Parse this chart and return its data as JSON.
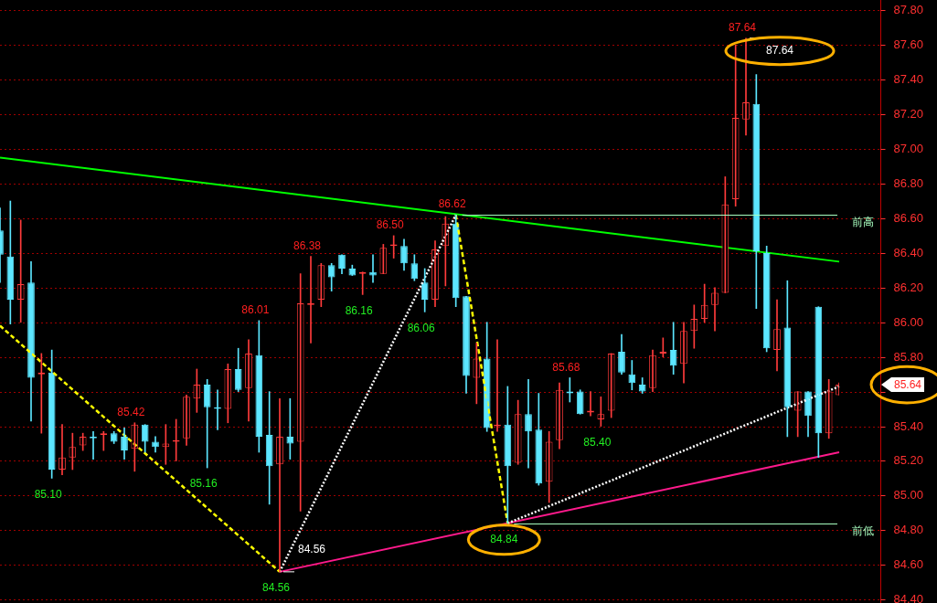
{
  "chart_data": {
    "type": "candlestick",
    "categories": [
      null,
      null,
      null,
      null,
      null,
      null,
      null,
      null,
      null,
      null,
      null,
      null,
      null,
      null,
      null,
      null,
      null,
      null,
      null,
      null,
      null,
      null,
      null,
      null,
      null,
      null,
      null,
      null,
      null,
      null,
      null,
      null,
      null,
      null,
      null,
      null,
      null,
      null,
      null,
      null,
      null,
      null,
      null,
      null,
      null,
      null,
      null,
      null,
      null,
      null,
      null,
      null,
      null,
      null,
      null,
      null,
      null,
      null,
      null,
      null,
      null,
      null,
      null,
      null,
      null,
      null,
      null,
      null,
      null,
      null,
      null,
      null,
      null,
      null,
      null,
      null,
      null,
      null,
      null,
      null,
      null,
      null
    ],
    "series": [
      {
        "type": "line",
        "values": [
          86.95,
          null,
          null,
          null,
          null,
          null,
          null,
          null,
          null,
          null,
          null,
          null,
          null,
          null,
          null,
          null,
          null,
          null,
          null,
          null,
          null,
          null,
          null,
          null,
          null,
          null,
          null,
          null,
          null,
          null,
          null,
          null,
          null,
          null,
          null,
          null,
          null,
          null,
          null,
          null,
          null,
          null,
          null,
          null,
          null,
          null,
          null,
          null,
          null,
          null,
          null,
          null,
          null,
          null,
          null,
          null,
          null,
          null,
          null,
          null,
          null,
          null,
          null,
          null,
          null,
          null,
          null,
          null,
          null,
          null,
          null,
          null,
          null,
          null,
          null,
          null,
          null,
          null,
          null,
          null,
          null,
          86.35
        ],
        "color": "#00ff00",
        "line_style": "solid"
      },
      {
        "type": "line",
        "values": [
          null,
          null,
          null,
          null,
          null,
          null,
          null,
          null,
          null,
          null,
          null,
          null,
          null,
          null,
          null,
          null,
          null,
          null,
          null,
          null,
          null,
          null,
          null,
          null,
          null,
          null,
          null,
          84.56,
          null,
          null,
          null,
          null,
          null,
          null,
          null,
          null,
          null,
          null,
          null,
          null,
          null,
          null,
          null,
          null,
          null,
          null,
          null,
          null,
          null,
          null,
          null,
          null,
          null,
          null,
          null,
          null,
          null,
          null,
          null,
          null,
          null,
          null,
          null,
          null,
          null,
          null,
          null,
          null,
          null,
          null,
          null,
          null,
          null,
          null,
          null,
          null,
          null,
          null,
          null,
          null,
          null,
          85.25
        ],
        "color": "#ff1a8c",
        "line_style": "solid"
      },
      {
        "type": "line",
        "values": [
          85.98,
          null,
          null,
          null,
          null,
          null,
          null,
          null,
          null,
          null,
          null,
          null,
          null,
          null,
          null,
          null,
          null,
          null,
          null,
          null,
          null,
          null,
          null,
          null,
          null,
          null,
          null,
          84.56,
          null,
          null,
          null,
          null,
          null,
          null,
          null,
          null,
          null,
          null,
          null,
          null,
          null,
          null,
          null,
          null,
          null,
          null,
          null,
          null,
          null,
          null,
          null,
          null,
          null,
          null,
          null,
          null,
          null,
          null,
          null,
          null,
          null,
          null,
          null,
          null,
          null,
          null,
          null,
          null,
          null,
          null,
          null,
          null,
          null,
          null,
          null,
          null,
          null,
          null,
          null,
          null,
          null,
          null
        ],
        "color": "#ffff00",
        "line_style": "dashed"
      },
      {
        "type": "line",
        "values": [
          null,
          null,
          null,
          null,
          null,
          null,
          null,
          null,
          null,
          null,
          null,
          null,
          null,
          null,
          null,
          null,
          null,
          null,
          null,
          null,
          null,
          null,
          null,
          null,
          null,
          null,
          null,
          84.56,
          null,
          null,
          null,
          null,
          null,
          null,
          null,
          null,
          null,
          null,
          null,
          null,
          null,
          null,
          null,
          null,
          86.62,
          null,
          null,
          null,
          null,
          null,
          null,
          null,
          null,
          null,
          null,
          null,
          null,
          null,
          null,
          null,
          null,
          null,
          null,
          null,
          null,
          null,
          null,
          null,
          null,
          null,
          null,
          null,
          null,
          null,
          null,
          null,
          null,
          null,
          null,
          null,
          null,
          null
        ],
        "color": "#ffffff",
        "line_style": "dotted"
      },
      {
        "type": "line",
        "values": [
          null,
          null,
          null,
          null,
          null,
          null,
          null,
          null,
          null,
          null,
          null,
          null,
          null,
          null,
          null,
          null,
          null,
          null,
          null,
          null,
          null,
          null,
          null,
          null,
          null,
          null,
          null,
          null,
          null,
          null,
          null,
          null,
          null,
          null,
          null,
          null,
          null,
          null,
          null,
          null,
          null,
          null,
          null,
          null,
          86.62,
          null,
          null,
          null,
          null,
          84.84,
          null,
          null,
          null,
          null,
          null,
          null,
          null,
          null,
          null,
          null,
          null,
          null,
          null,
          null,
          null,
          null,
          null,
          null,
          null,
          null,
          null,
          null,
          null,
          null,
          null,
          null,
          null,
          null,
          null,
          null,
          null,
          null
        ],
        "color": "#ffff00",
        "line_style": "dashed"
      },
      {
        "type": "line",
        "values": [
          null,
          null,
          null,
          null,
          null,
          null,
          null,
          null,
          null,
          null,
          null,
          null,
          null,
          null,
          null,
          null,
          null,
          null,
          null,
          null,
          null,
          null,
          null,
          null,
          null,
          null,
          null,
          null,
          null,
          null,
          null,
          null,
          null,
          null,
          null,
          null,
          null,
          null,
          null,
          null,
          null,
          null,
          null,
          null,
          null,
          null,
          null,
          null,
          null,
          84.84,
          null,
          null,
          null,
          null,
          null,
          null,
          null,
          null,
          null,
          null,
          null,
          null,
          null,
          null,
          null,
          null,
          null,
          null,
          null,
          null,
          null,
          null,
          null,
          null,
          null,
          null,
          null,
          null,
          null,
          null,
          null,
          85.63
        ],
        "color": "#ffffff",
        "line_style": "dotted"
      },
      {
        "ohlc": [
          [
            86.53,
            86.66,
            86.23,
            86.39
          ],
          [
            86.38,
            86.7,
            85.99,
            86.13
          ],
          [
            86.13,
            86.59,
            86.0,
            86.22
          ],
          [
            86.23,
            86.35,
            85.43,
            85.68
          ],
          [
            85.7,
            85.82,
            85.36,
            85.71
          ],
          [
            85.71,
            85.84,
            85.1,
            85.15
          ],
          [
            85.15,
            85.41,
            85.12,
            85.22
          ],
          [
            85.22,
            85.36,
            85.15,
            85.28
          ],
          [
            85.29,
            85.36,
            85.26,
            85.34
          ],
          [
            85.34,
            85.37,
            85.21,
            85.33
          ],
          [
            85.35,
            85.37,
            85.26,
            85.36
          ],
          [
            85.36,
            85.37,
            85.3,
            85.31
          ],
          [
            85.34,
            85.39,
            85.21,
            85.26
          ],
          [
            85.27,
            85.42,
            85.14,
            85.41
          ],
          [
            85.41,
            85.41,
            85.25,
            85.31
          ],
          [
            85.31,
            85.34,
            85.25,
            85.28
          ],
          [
            85.28,
            85.41,
            85.18,
            85.3
          ],
          [
            85.31,
            85.44,
            85.2,
            85.32
          ],
          [
            85.33,
            85.58,
            85.29,
            85.57
          ],
          [
            85.56,
            85.73,
            85.48,
            85.64
          ],
          [
            85.64,
            85.67,
            85.16,
            85.51
          ],
          [
            85.51,
            85.61,
            85.38,
            85.5
          ],
          [
            85.5,
            85.76,
            85.42,
            85.73
          ],
          [
            85.73,
            85.85,
            85.6,
            85.61
          ],
          [
            85.62,
            85.9,
            85.43,
            85.82
          ],
          [
            85.81,
            86.01,
            85.25,
            85.34
          ],
          [
            85.35,
            85.6,
            84.95,
            85.17
          ],
          [
            85.18,
            85.56,
            84.56,
            85.34
          ],
          [
            85.34,
            85.56,
            85.21,
            85.3
          ],
          [
            85.31,
            86.28,
            84.91,
            86.11
          ],
          [
            86.1,
            86.38,
            85.88,
            86.11
          ],
          [
            86.13,
            86.34,
            86.09,
            86.33
          ],
          [
            86.33,
            86.34,
            86.18,
            86.26
          ],
          [
            86.39,
            86.39,
            86.28,
            86.31
          ],
          [
            86.31,
            86.33,
            86.27,
            86.27
          ],
          [
            86.28,
            86.29,
            86.16,
            86.29
          ],
          [
            86.29,
            86.39,
            86.23,
            86.27
          ],
          [
            86.28,
            86.45,
            86.28,
            86.43
          ],
          [
            86.44,
            86.5,
            86.37,
            86.45
          ],
          [
            86.44,
            86.48,
            86.3,
            86.34
          ],
          [
            86.34,
            86.39,
            86.24,
            86.25
          ],
          [
            86.23,
            86.31,
            86.06,
            86.13
          ],
          [
            86.13,
            86.47,
            86.09,
            86.42
          ],
          [
            86.44,
            86.61,
            86.21,
            86.57
          ],
          [
            86.57,
            86.62,
            86.09,
            86.14
          ],
          [
            86.15,
            86.15,
            85.59,
            85.69
          ],
          [
            85.68,
            85.88,
            85.53,
            85.79
          ],
          [
            85.79,
            86.0,
            85.37,
            85.39
          ],
          [
            85.4,
            85.9,
            85.37,
            85.41
          ],
          [
            85.41,
            85.63,
            84.84,
            85.17
          ],
          [
            85.19,
            85.55,
            85.18,
            85.47
          ],
          [
            85.47,
            85.67,
            85.16,
            85.37
          ],
          [
            85.38,
            85.59,
            85.06,
            85.07
          ],
          [
            85.08,
            85.37,
            84.96,
            85.31
          ],
          [
            85.32,
            85.65,
            85.27,
            85.61
          ],
          [
            85.6,
            85.68,
            85.54,
            85.59
          ],
          [
            85.6,
            85.61,
            85.47,
            85.47
          ],
          [
            85.48,
            85.6,
            85.46,
            85.49
          ],
          [
            85.44,
            85.57,
            85.4,
            85.47
          ],
          [
            85.49,
            85.82,
            85.45,
            85.82
          ],
          [
            85.83,
            85.93,
            85.7,
            85.71
          ],
          [
            85.7,
            85.78,
            85.61,
            85.65
          ],
          [
            85.64,
            85.68,
            85.59,
            85.6
          ],
          [
            85.62,
            85.84,
            85.6,
            85.81
          ],
          [
            85.82,
            85.91,
            85.8,
            85.83
          ],
          [
            85.84,
            86.0,
            85.7,
            85.75
          ],
          [
            85.76,
            86.0,
            85.65,
            85.95
          ],
          [
            85.95,
            86.1,
            85.85,
            86.02
          ],
          [
            86.02,
            86.22,
            86.0,
            86.1
          ],
          [
            86.1,
            86.2,
            85.95,
            86.17
          ],
          [
            86.17,
            86.84,
            86.17,
            86.68
          ],
          [
            86.71,
            87.6,
            86.67,
            87.18
          ],
          [
            87.17,
            87.64,
            87.08,
            87.27
          ],
          [
            87.26,
            87.43,
            86.08,
            86.41
          ],
          [
            86.4,
            86.44,
            85.83,
            85.85
          ],
          [
            85.84,
            86.13,
            85.72,
            85.96
          ],
          [
            85.97,
            86.24,
            85.34,
            85.51
          ],
          [
            85.49,
            85.6,
            85.34,
            85.6
          ],
          [
            85.6,
            85.6,
            85.34,
            85.46
          ],
          [
            86.09,
            86.09,
            85.22,
            85.36
          ],
          [
            85.36,
            85.67,
            85.33,
            85.6
          ],
          [
            85.58,
            85.65,
            85.58,
            85.64
          ]
        ],
        "colors": [
          "#5ce6ff",
          "#5ce6ff",
          "#ff3b3b",
          "#5ce6ff",
          "#ff3b3b",
          "#5ce6ff",
          "#ff3b3b",
          "#ff3b3b",
          "#ff3b3b",
          "#5ce6ff",
          "#ff3b3b",
          "#5ce6ff",
          "#5ce6ff",
          "#ff3b3b",
          "#5ce6ff",
          "#5ce6ff",
          "#ff3b3b",
          "#ff3b3b",
          "#ff3b3b",
          "#ff3b3b",
          "#5ce6ff",
          "#5ce6ff",
          "#ff3b3b",
          "#5ce6ff",
          "#ff3b3b",
          "#5ce6ff",
          "#5ce6ff",
          "#ff3b3b",
          "#5ce6ff",
          "#ff3b3b",
          "#ff3b3b",
          "#ff3b3b",
          "#5ce6ff",
          "#5ce6ff",
          "#5ce6ff",
          "#ff3b3b",
          "#5ce6ff",
          "#ff3b3b",
          "#ff3b3b",
          "#5ce6ff",
          "#5ce6ff",
          "#5ce6ff",
          "#ff3b3b",
          "#ff3b3b",
          "#5ce6ff",
          "#5ce6ff",
          "#ff3b3b",
          "#5ce6ff",
          "#ff3b3b",
          "#5ce6ff",
          "#ff3b3b",
          "#5ce6ff",
          "#5ce6ff",
          "#ff3b3b",
          "#ff3b3b",
          "#5ce6ff",
          "#5ce6ff",
          "#ff3b3b",
          "#ff3b3b",
          "#ff3b3b",
          "#5ce6ff",
          "#5ce6ff",
          "#5ce6ff",
          "#ff3b3b",
          "#ff3b3b",
          "#5ce6ff",
          "#ff3b3b",
          "#ff3b3b",
          "#ff3b3b",
          "#ff3b3b",
          "#ff3b3b",
          "#ff3b3b",
          "#ff3b3b",
          "#5ce6ff",
          "#5ce6ff",
          "#ff3b3b",
          "#5ce6ff",
          "#ff3b3b",
          "#5ce6ff",
          "#5ce6ff",
          "#ff3b3b",
          "#ff3b3b"
        ]
      }
    ],
    "ylim": [
      84.38,
      87.86
    ],
    "yticks": [
      {
        "value": 84.4,
        "label": "84.40"
      },
      {
        "value": 84.6,
        "label": "84.60"
      },
      {
        "value": 84.8,
        "label": "84.80"
      },
      {
        "value": 85.0,
        "label": "85.00"
      },
      {
        "value": 85.2,
        "label": "85.20"
      },
      {
        "value": 85.4,
        "label": "85.40"
      },
      {
        "value": 85.6,
        "label": null
      },
      {
        "value": 85.8,
        "label": "85.80"
      },
      {
        "value": 86.0,
        "label": "86.00"
      },
      {
        "value": 86.2,
        "label": "86.20"
      },
      {
        "value": 86.4,
        "label": "86.40"
      },
      {
        "value": 86.6,
        "label": "86.60"
      },
      {
        "value": 86.8,
        "label": "86.80"
      },
      {
        "value": 87.0,
        "label": "87.00"
      },
      {
        "value": 87.2,
        "label": "87.20"
      },
      {
        "value": 87.4,
        "label": "87.40"
      },
      {
        "value": 87.6,
        "label": "87.60"
      },
      {
        "value": 87.8,
        "label": "87.80"
      }
    ],
    "ref_lines": [
      {
        "axis": "y",
        "value": 86.62,
        "label": "前高",
        "color": "#a8ffc0"
      },
      {
        "axis": "y",
        "value": 84.84,
        "label": "前低",
        "color": "#a8ffc0"
      }
    ],
    "annotations": [
      "85.64",
      {
        "text": "87.64",
        "y": 87.64
      },
      "87.64",
      {
        "text": "86.62",
        "y": 86.62
      },
      {
        "text": "86.50",
        "y": 86.5
      },
      {
        "text": "86.38",
        "y": 86.38
      },
      {
        "text": "86.01",
        "y": 86.01
      },
      {
        "text": "85.42",
        "y": 85.42
      },
      {
        "text": "85.68",
        "y": 85.68
      },
      {
        "text": "85.10",
        "y": 85.1
      },
      {
        "text": "85.16",
        "y": 85.16
      },
      {
        "text": "84.56",
        "y": 84.56
      },
      "84.56",
      {
        "text": "86.16",
        "y": 86.16
      },
      {
        "text": "86.06",
        "y": 86.06
      },
      {
        "text": "84.84",
        "y": 84.84
      },
      {
        "text": "85.40",
        "y": 85.4
      }
    ],
    "grid": "y",
    "legend": false,
    "tick_labels": "y"
  }
}
